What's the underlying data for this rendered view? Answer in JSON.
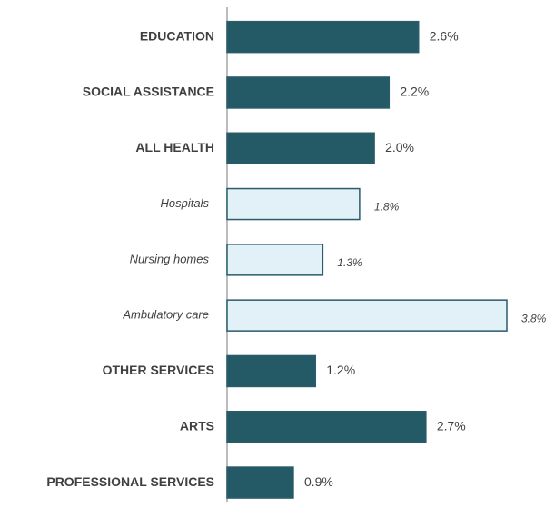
{
  "chart_data": {
    "type": "hbar",
    "categories": [
      "EDUCATION",
      "SOCIAL ASSISTANCE",
      "ALL HEALTH",
      "Hospitals",
      "Nursing homes",
      "Ambulatory care",
      "OTHER SERVICES",
      "ARTS",
      "PROFESSIONAL SERVICES"
    ],
    "values": [
      2.6,
      2.2,
      2.0,
      1.8,
      1.3,
      3.8,
      1.2,
      2.7,
      0.9
    ],
    "value_labels": [
      "2.6%",
      "2.2%",
      "2.0%",
      "1.8%",
      "1.3%",
      "3.8%",
      "1.2%",
      "2.7%",
      "0.9%"
    ],
    "colors": [
      "#245a66",
      "#245a66",
      "#245a66",
      "#e2f1f8",
      "#e2f1f8",
      "#e2f1f8",
      "#245a66",
      "#245a66",
      "#245a66"
    ]
  }
}
